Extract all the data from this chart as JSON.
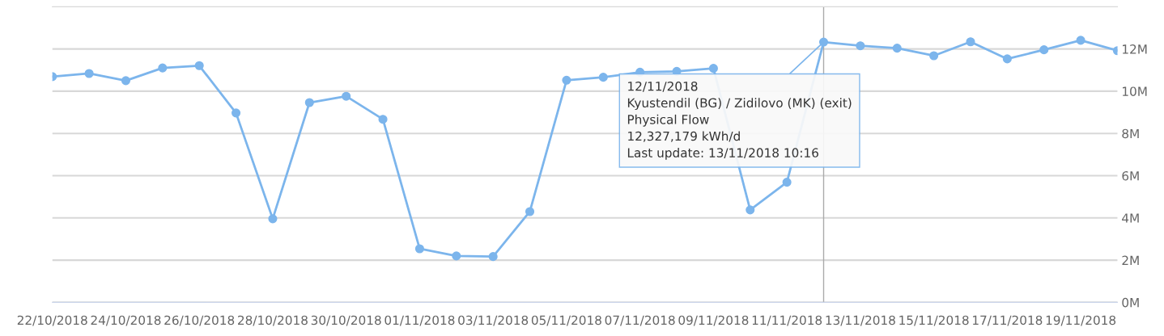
{
  "chart_data": {
    "type": "line",
    "x": [
      "2018-10-22",
      "2018-10-23",
      "2018-10-24",
      "2018-10-25",
      "2018-10-26",
      "2018-10-27",
      "2018-10-28",
      "2018-10-29",
      "2018-10-30",
      "2018-10-31",
      "2018-11-01",
      "2018-11-02",
      "2018-11-03",
      "2018-11-04",
      "2018-11-05",
      "2018-11-06",
      "2018-11-07",
      "2018-11-08",
      "2018-11-09",
      "2018-11-10",
      "2018-11-11",
      "2018-11-12",
      "2018-11-13",
      "2018-11-14",
      "2018-11-15",
      "2018-11-16",
      "2018-11-17",
      "2018-11-18",
      "2018-11-19",
      "2018-11-20"
    ],
    "series": [
      {
        "color": "#7cb5ec",
        "values": [
          10.69,
          10.84,
          10.5,
          11.1,
          11.21,
          8.97,
          3.96,
          9.46,
          9.76,
          8.67,
          2.54,
          2.2,
          2.17,
          4.3,
          10.52,
          10.66,
          10.9,
          10.94,
          11.08,
          4.38,
          5.69,
          12.327179,
          12.15,
          12.04,
          11.68,
          12.34,
          11.53,
          11.96,
          12.41,
          11.92
        ]
      }
    ],
    "xlim": [
      "2018-10-22",
      "2018-11-20"
    ],
    "xticks": [
      {
        "value": "2018-10-22",
        "label": "22/10/2018"
      },
      {
        "value": "2018-10-24",
        "label": "24/10/2018"
      },
      {
        "value": "2018-10-26",
        "label": "26/10/2018"
      },
      {
        "value": "2018-10-28",
        "label": "28/10/2018"
      },
      {
        "value": "2018-10-30",
        "label": "30/10/2018"
      },
      {
        "value": "2018-11-01",
        "label": "01/11/2018"
      },
      {
        "value": "2018-11-03",
        "label": "03/11/2018"
      },
      {
        "value": "2018-11-05",
        "label": "05/11/2018"
      },
      {
        "value": "2018-11-07",
        "label": "07/11/2018"
      },
      {
        "value": "2018-11-09",
        "label": "09/11/2018"
      },
      {
        "value": "2018-11-11",
        "label": "11/11/2018"
      },
      {
        "value": "2018-11-13",
        "label": "13/11/2018"
      },
      {
        "value": "2018-11-15",
        "label": "15/11/2018"
      },
      {
        "value": "2018-11-17",
        "label": "17/11/2018"
      },
      {
        "value": "2018-11-19",
        "label": "19/11/2018"
      }
    ],
    "ylim": [
      0,
      14
    ],
    "yticks": [
      {
        "value": 0,
        "label": "0M"
      },
      {
        "value": 2,
        "label": "2M"
      },
      {
        "value": 4,
        "label": "4M"
      },
      {
        "value": 6,
        "label": "6M"
      },
      {
        "value": 8,
        "label": "8M"
      },
      {
        "value": 10,
        "label": "10M"
      },
      {
        "value": 12,
        "label": "12M"
      }
    ],
    "grid": "y",
    "marker": "circle",
    "line_style": "solid",
    "legend": false,
    "ref_lines": [
      {
        "axis": "x",
        "value": "2018-11-12",
        "color": "#aaaaaa"
      }
    ],
    "annotations": [
      {
        "text": "12/11/2018\nKyustendil (BG) / Zidilovo (MK) (exit)\nPhysical Flow\n12,327,179 kWh/d\nLast update: 13/11/2018 10:16",
        "x": "2018-11-12",
        "y": 12.327179
      }
    ]
  }
}
